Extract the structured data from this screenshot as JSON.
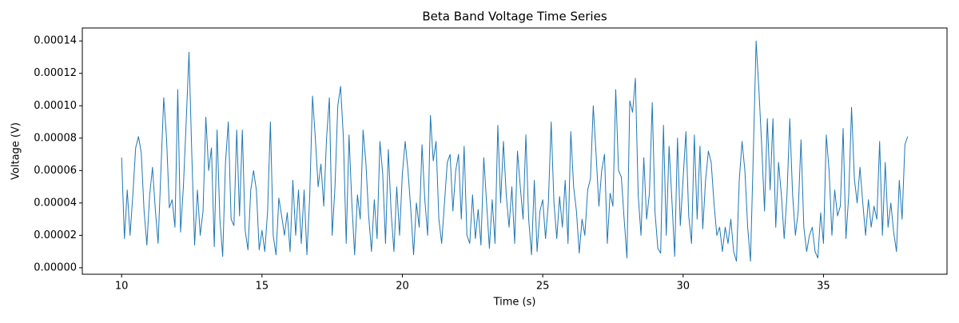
{
  "chart_data": {
    "type": "line",
    "title": "Beta Band Voltage Time Series",
    "x_label": "Time (s)",
    "y_label": "Voltage (V)",
    "color": "#1f77b4",
    "x": [
      10,
      10.1,
      10.2,
      10.3,
      10.4,
      10.5,
      10.6,
      10.7,
      10.8,
      10.9,
      11,
      11.1,
      11.2,
      11.3,
      11.4,
      11.5,
      11.6,
      11.7,
      11.8,
      11.9,
      12,
      12.1,
      12.2,
      12.3,
      12.4,
      12.5,
      12.6,
      12.7,
      12.8,
      12.9,
      13,
      13.1,
      13.2,
      13.3,
      13.4,
      13.5,
      13.6,
      13.7,
      13.8,
      13.9,
      14,
      14.1,
      14.2,
      14.3,
      14.4,
      14.5,
      14.6,
      14.7,
      14.8,
      14.9,
      15,
      15.1,
      15.2,
      15.3,
      15.4,
      15.5,
      15.6,
      15.7,
      15.8,
      15.9,
      16,
      16.1,
      16.2,
      16.3,
      16.4,
      16.5,
      16.6,
      16.7,
      16.8,
      16.9,
      17,
      17.1,
      17.2,
      17.3,
      17.4,
      17.5,
      17.6,
      17.7,
      17.8,
      17.9,
      18,
      18.1,
      18.2,
      18.3,
      18.4,
      18.5,
      18.6,
      18.7,
      18.8,
      18.9,
      19,
      19.1,
      19.2,
      19.3,
      19.4,
      19.5,
      19.6,
      19.7,
      19.8,
      19.9,
      20,
      20.1,
      20.2,
      20.3,
      20.4,
      20.5,
      20.6,
      20.7,
      20.8,
      20.9,
      21,
      21.1,
      21.2,
      21.3,
      21.4,
      21.5,
      21.6,
      21.7,
      21.8,
      21.9,
      22,
      22.1,
      22.2,
      22.3,
      22.4,
      22.5,
      22.6,
      22.7,
      22.8,
      22.9,
      23,
      23.1,
      23.2,
      23.3,
      23.4,
      23.5,
      23.6,
      23.7,
      23.8,
      23.9,
      24,
      24.1,
      24.2,
      24.3,
      24.4,
      24.5,
      24.6,
      24.7,
      24.8,
      24.9,
      25,
      25.1,
      25.2,
      25.3,
      25.4,
      25.5,
      25.6,
      25.7,
      25.8,
      25.9,
      26,
      26.1,
      26.2,
      26.3,
      26.4,
      26.5,
      26.6,
      26.7,
      26.8,
      26.9,
      27,
      27.1,
      27.2,
      27.3,
      27.4,
      27.5,
      27.6,
      27.7,
      27.8,
      27.9,
      28,
      28.1,
      28.2,
      28.3,
      28.4,
      28.5,
      28.6,
      28.7,
      28.8,
      28.9,
      29,
      29.1,
      29.2,
      29.3,
      29.4,
      29.5,
      29.6,
      29.7,
      29.8,
      29.9,
      30,
      30.1,
      30.2,
      30.3,
      30.4,
      30.5,
      30.6,
      30.7,
      30.8,
      30.9,
      31,
      31.1,
      31.2,
      31.3,
      31.4,
      31.5,
      31.6,
      31.7,
      31.8,
      31.9,
      32,
      32.1,
      32.2,
      32.3,
      32.4,
      32.5,
      32.6,
      32.7,
      32.8,
      32.9,
      33,
      33.1,
      33.2,
      33.3,
      33.4,
      33.5,
      33.6,
      33.7,
      33.8,
      33.9,
      34,
      34.1,
      34.2,
      34.3,
      34.4,
      34.5,
      34.6,
      34.7,
      34.8,
      34.9,
      35,
      35.1,
      35.2,
      35.3,
      35.4,
      35.5,
      35.6,
      35.7,
      35.8,
      35.9,
      36,
      36.1,
      36.2,
      36.3,
      36.4,
      36.5,
      36.6,
      36.7,
      36.8,
      36.9,
      37,
      37.1,
      37.2,
      37.3,
      37.4,
      37.5,
      37.6,
      37.7,
      37.8,
      37.9,
      38
    ],
    "values": [
      6.8e-05,
      1.8e-05,
      4.8e-05,
      2e-05,
      4.5e-05,
      7.4e-05,
      8.1e-05,
      7.1e-05,
      3.5e-05,
      1.4e-05,
      4.5e-05,
      6.2e-05,
      3.6e-05,
      1.5e-05,
      6e-05,
      0.000105,
      8e-05,
      3.7e-05,
      4.2e-05,
      2.5e-05,
      0.00011,
      2.2e-05,
      5e-05,
      9e-05,
      0.000133,
      7e-05,
      1.4e-05,
      4.8e-05,
      2e-05,
      3.5e-05,
      9.3e-05,
      6e-05,
      7.4e-05,
      1.3e-05,
      8.5e-05,
      3e-05,
      7e-06,
      6.5e-05,
      9e-05,
      3e-05,
      2.6e-05,
      8.5e-05,
      3.2e-05,
      8.5e-05,
      2.3e-05,
      1.1e-05,
      4.8e-05,
      6e-05,
      4.8e-05,
      1.1e-05,
      2.3e-05,
      1e-05,
      3.5e-05,
      9e-05,
      2e-05,
      8e-06,
      4.3e-05,
      3.2e-05,
      2e-05,
      3.4e-05,
      1e-05,
      5.4e-05,
      2e-05,
      4.8e-05,
      1.5e-05,
      4.8e-05,
      8e-06,
      4.4e-05,
      0.000106,
      8e-05,
      5e-05,
      6.4e-05,
      3.8e-05,
      8e-05,
      0.000105,
      2e-05,
      5e-05,
      0.0001,
      0.000112,
      8e-05,
      1.5e-05,
      8.2e-05,
      4e-05,
      8e-06,
      4.5e-05,
      3e-05,
      8.5e-05,
      6.5e-05,
      3.2e-05,
      1e-05,
      4.2e-05,
      1.8e-05,
      7.8e-05,
      5.8e-05,
      1.5e-05,
      7.3e-05,
      3.4e-05,
      1e-05,
      5e-05,
      2e-05,
      5.8e-05,
      7.8e-05,
      6e-05,
      3.6e-05,
      8e-06,
      4e-05,
      2.5e-05,
      7.6e-05,
      4.2e-05,
      2e-05,
      9.4e-05,
      6.6e-05,
      7.8e-05,
      3e-05,
      1.5e-05,
      4e-05,
      6.5e-05,
      7e-05,
      3.5e-05,
      6e-05,
      7e-05,
      3e-05,
      7.5e-05,
      2e-05,
      1.5e-05,
      4.5e-05,
      1.8e-05,
      3.6e-05,
      1.4e-05,
      6.8e-05,
      4e-05,
      1.2e-05,
      4.2e-05,
      1.5e-05,
      8.8e-05,
      4e-05,
      7.8e-05,
      4.5e-05,
      2.5e-05,
      5e-05,
      1.5e-05,
      7.2e-05,
      5e-05,
      3e-05,
      8.2e-05,
      3e-05,
      8e-06,
      5.4e-05,
      1e-05,
      3.5e-05,
      4.2e-05,
      1.8e-05,
      4e-05,
      9e-05,
      4e-05,
      1.8e-05,
      4.4e-05,
      2.5e-05,
      5.4e-05,
      1.5e-05,
      8.4e-05,
      5e-05,
      3.5e-05,
      9e-06,
      3e-05,
      2e-05,
      4.8e-05,
      5.5e-05,
      0.0001,
      7e-05,
      3.8e-05,
      6e-05,
      7e-05,
      1.5e-05,
      4.6e-05,
      3.8e-05,
      0.00011,
      6e-05,
      5.6e-05,
      3e-05,
      6e-06,
      0.000103,
      9.6e-05,
      0.000117,
      4.5e-05,
      2e-05,
      6.8e-05,
      3e-05,
      4.6e-05,
      0.000102,
      3.4e-05,
      1.2e-05,
      9e-06,
      8.8e-05,
      2e-05,
      7.5e-05,
      4.2e-05,
      7e-06,
      8e-05,
      2.6e-05,
      5.5e-05,
      8.4e-05,
      3.2e-05,
      1.5e-05,
      8.2e-05,
      3e-05,
      7.5e-05,
      2.4e-05,
      5.4e-05,
      7.2e-05,
      6.5e-05,
      4e-05,
      2e-05,
      2.5e-05,
      1e-05,
      2.5e-05,
      1.5e-05,
      3e-05,
      1e-05,
      4e-06,
      5.4e-05,
      7.8e-05,
      6e-05,
      2.5e-05,
      4e-06,
      7e-05,
      0.00014,
      0.00011,
      7.5e-05,
      3.5e-05,
      9.2e-05,
      4.8e-05,
      9.2e-05,
      2.5e-05,
      6.5e-05,
      4.5e-05,
      1.8e-05,
      4.5e-05,
      9.2e-05,
      4.5e-05,
      2e-05,
      3.5e-05,
      7.9e-05,
      2.5e-05,
      1e-05,
      2e-05,
      2.5e-05,
      1e-05,
      6e-06,
      3.4e-05,
      1.5e-05,
      8.2e-05,
      6e-05,
      2e-05,
      4.8e-05,
      3.2e-05,
      3.8e-05,
      8.6e-05,
      1.8e-05,
      4.5e-05,
      9.9e-05,
      5.5e-05,
      4e-05,
      6.2e-05,
      4e-05,
      2e-05,
      4.2e-05,
      2.5e-05,
      3.8e-05,
      3e-05,
      7.8e-05,
      2e-05,
      6.5e-05,
      2.5e-05,
      4e-05,
      2.2e-05,
      1e-05,
      5.4e-05,
      3e-05,
      7.6e-05,
      8.1e-05
    ],
    "xlim": [
      8.6,
      39.4
    ],
    "xticks": [
      10,
      15,
      20,
      25,
      30,
      35
    ],
    "ylim": [
      -4e-06,
      0.000148
    ],
    "yticks": [
      {
        "value": 0,
        "label": "0.00000"
      },
      2e-05,
      4e-05,
      6e-05,
      8e-05,
      {
        "value": 0.0001,
        "label": "0.00010"
      },
      0.00012,
      0.00014
    ],
    "grid": false
  }
}
